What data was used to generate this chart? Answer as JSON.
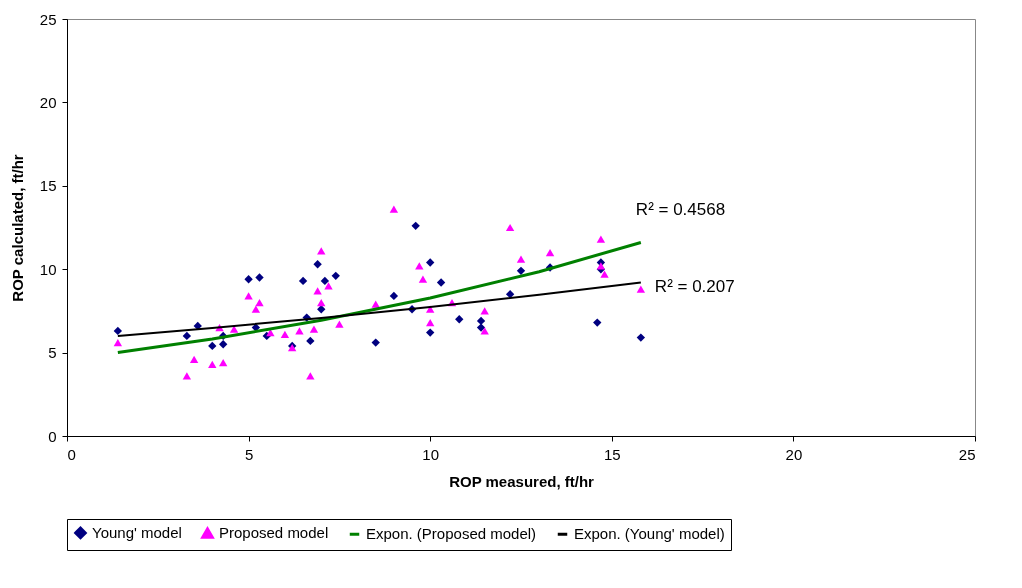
{
  "chart_data": {
    "type": "scatter",
    "xlabel": "ROP measured, ft/hr",
    "ylabel": "ROP calculated, ft/hr",
    "xlim": [
      0,
      25
    ],
    "ylim": [
      0,
      25
    ],
    "xticks": [
      0,
      5,
      10,
      15,
      20,
      25
    ],
    "yticks": [
      0,
      5,
      10,
      15,
      20,
      25
    ],
    "grid": false,
    "legend": "bottom",
    "series": [
      {
        "name": "Young' model",
        "marker": "diamond",
        "color": "#000080",
        "x": [
          1.4,
          3.3,
          3.6,
          4.0,
          4.3,
          4.3,
          5.0,
          5.3,
          5.2,
          5.5,
          6.2,
          6.5,
          6.6,
          6.7,
          6.9,
          7.1,
          7.0,
          7.4,
          8.5,
          9.0,
          9.6,
          9.5,
          10.0,
          10.0,
          10.3,
          10.8,
          11.4,
          11.4,
          12.2,
          12.5,
          13.3,
          14.7,
          14.7,
          14.6,
          15.8
        ],
        "values": [
          6.3,
          6.0,
          6.6,
          5.4,
          5.5,
          6.0,
          9.4,
          9.5,
          6.5,
          6.0,
          5.4,
          9.3,
          7.1,
          5.7,
          10.3,
          9.3,
          7.6,
          9.6,
          5.6,
          8.4,
          12.6,
          7.6,
          10.4,
          6.2,
          9.2,
          7.0,
          6.5,
          6.9,
          8.5,
          9.9,
          10.1,
          10.4,
          10.0,
          6.8,
          5.9
        ]
      },
      {
        "name": "Proposed model",
        "marker": "triangle",
        "color": "#ff00ff",
        "x": [
          1.4,
          3.3,
          3.5,
          4.0,
          4.3,
          4.2,
          4.6,
          5.0,
          5.2,
          5.3,
          5.6,
          6.0,
          6.2,
          6.4,
          6.7,
          6.8,
          6.9,
          7.0,
          7.0,
          7.2,
          7.5,
          8.5,
          9.0,
          9.7,
          9.8,
          10.0,
          10.0,
          10.6,
          11.5,
          11.5,
          12.2,
          12.5,
          13.3,
          14.7,
          14.7,
          14.8,
          15.8
        ],
        "values": [
          5.6,
          3.6,
          4.6,
          4.3,
          4.4,
          6.5,
          6.4,
          8.4,
          7.6,
          8.0,
          6.2,
          6.1,
          5.3,
          6.3,
          3.6,
          6.4,
          8.7,
          11.1,
          8.0,
          9.0,
          6.7,
          7.9,
          13.6,
          10.2,
          9.4,
          7.6,
          6.8,
          8.0,
          7.5,
          6.3,
          12.5,
          10.6,
          11.0,
          11.8,
          10.2,
          9.7,
          8.8
        ]
      },
      {
        "name": "Expon. (Proposed model)",
        "type": "line",
        "marker": "none",
        "line_style": "solid",
        "color": "#008000",
        "x": [
          1.4,
          4,
          7,
          10,
          13,
          15.8
        ],
        "values": [
          5.0,
          5.82,
          6.94,
          8.27,
          9.85,
          11.6
        ]
      },
      {
        "name": "Expon. (Young' model)",
        "type": "line",
        "marker": "none",
        "line_style": "solid",
        "color": "#000000",
        "x": [
          1.4,
          4,
          7,
          10,
          13,
          15.8
        ],
        "values": [
          6.0,
          6.48,
          7.08,
          7.74,
          8.47,
          9.2
        ]
      }
    ],
    "annotations": [
      "R² = 0.4568",
      "R² = 0.207"
    ]
  }
}
